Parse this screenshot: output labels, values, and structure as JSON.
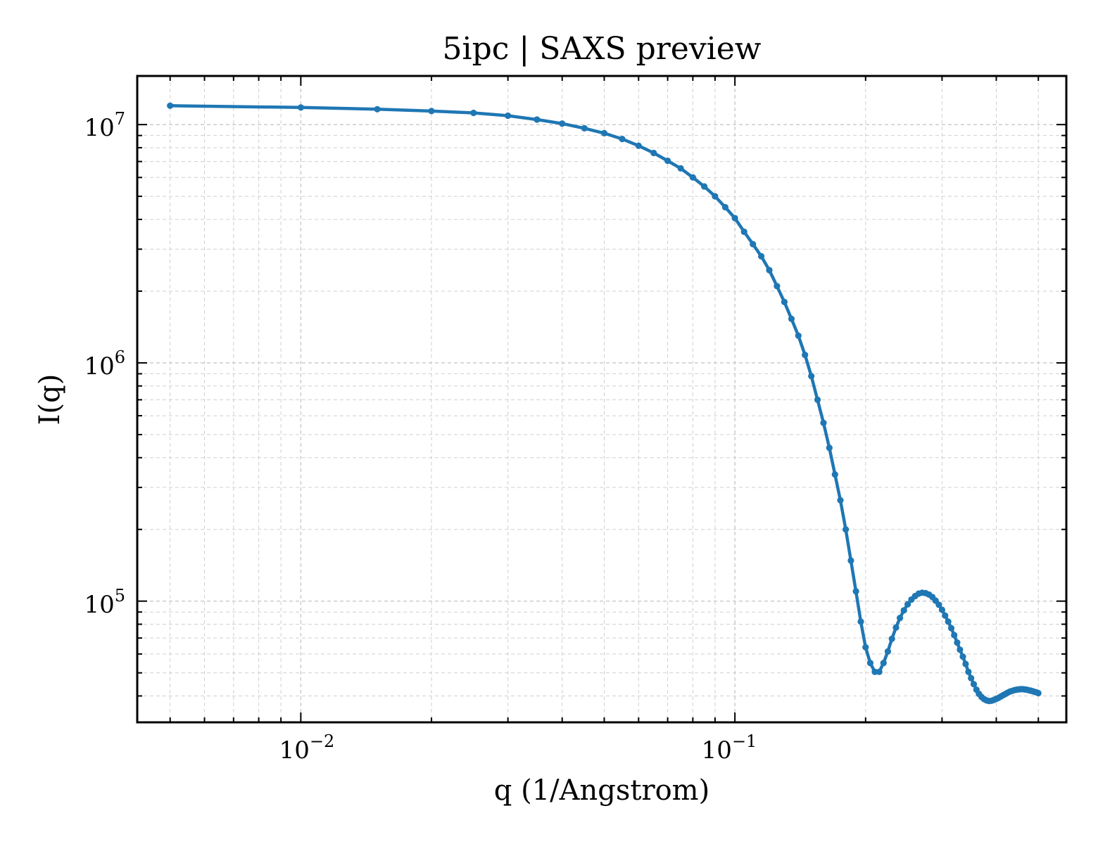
{
  "chart_data": {
    "type": "line",
    "title": "5ipc | SAXS preview",
    "xlabel": "q (1/Angstrom)",
    "ylabel": "I(q)",
    "x_scale": "log",
    "y_scale": "log",
    "xlim": [
      0.0042,
      0.58
    ],
    "ylim": [
      31000,
      16000000
    ],
    "grid": true,
    "line_color": "#1f77b4",
    "marker": "circle",
    "x_ticks": [
      {
        "value": 0.01,
        "base": "10",
        "exponent": "−2"
      },
      {
        "value": 0.1,
        "base": "10",
        "exponent": "−1"
      }
    ],
    "y_ticks": [
      {
        "value": 100000,
        "base": "10",
        "exponent": "5"
      },
      {
        "value": 1000000,
        "base": "10",
        "exponent": "6"
      },
      {
        "value": 10000000,
        "base": "10",
        "exponent": "7"
      }
    ],
    "series": [
      {
        "x": [
          0.005,
          0.01,
          0.015,
          0.02,
          0.025,
          0.03,
          0.035,
          0.04,
          0.045,
          0.05,
          0.055,
          0.06,
          0.065,
          0.07,
          0.075,
          0.08,
          0.085,
          0.09,
          0.095,
          0.1,
          0.105,
          0.11,
          0.115,
          0.12,
          0.125,
          0.13,
          0.135,
          0.14,
          0.145,
          0.15,
          0.155,
          0.16,
          0.165,
          0.17,
          0.175,
          0.18,
          0.185,
          0.19,
          0.195,
          0.2,
          0.205,
          0.21,
          0.215,
          0.22,
          0.225,
          0.23,
          0.235,
          0.24,
          0.245,
          0.25,
          0.255,
          0.26,
          0.265,
          0.27,
          0.275,
          0.28,
          0.285,
          0.29,
          0.295,
          0.3,
          0.305,
          0.31,
          0.315,
          0.32,
          0.325,
          0.33,
          0.335,
          0.34,
          0.345,
          0.35,
          0.355,
          0.36,
          0.365,
          0.37,
          0.375,
          0.38,
          0.385,
          0.39,
          0.395,
          0.4,
          0.405,
          0.41,
          0.415,
          0.42,
          0.425,
          0.43,
          0.435,
          0.44,
          0.445,
          0.45,
          0.455,
          0.46,
          0.465,
          0.47,
          0.475,
          0.48,
          0.485,
          0.49,
          0.495,
          0.5
        ],
        "y": [
          12000000,
          11800000,
          11600000,
          11400000,
          11200000,
          10900000,
          10500000,
          10100000,
          9650000,
          9200000,
          8700000,
          8150000,
          7600000,
          7050000,
          6550000,
          6000000,
          5500000,
          5000000,
          4500000,
          4050000,
          3550000,
          3150000,
          2800000,
          2450000,
          2100000,
          1800000,
          1530000,
          1300000,
          1080000,
          880000,
          700000,
          560000,
          440000,
          340000,
          265000,
          200000,
          148000,
          110000,
          82000,
          64000,
          55000,
          50500,
          50500,
          55000,
          61500,
          69500,
          77500,
          85000,
          91500,
          97000,
          101500,
          105000,
          107500,
          108500,
          108000,
          106500,
          104000,
          100500,
          96500,
          92000,
          87000,
          82000,
          77000,
          72000,
          67000,
          62500,
          58500,
          54500,
          50500,
          47500,
          44800,
          42500,
          40800,
          39600,
          38800,
          38300,
          38100,
          38200,
          38500,
          38900,
          39300,
          39800,
          40300,
          40800,
          41300,
          41700,
          42000,
          42300,
          42500,
          42600,
          42700,
          42700,
          42600,
          42500,
          42300,
          42100,
          41900,
          41600,
          41400,
          41100
        ]
      }
    ]
  }
}
